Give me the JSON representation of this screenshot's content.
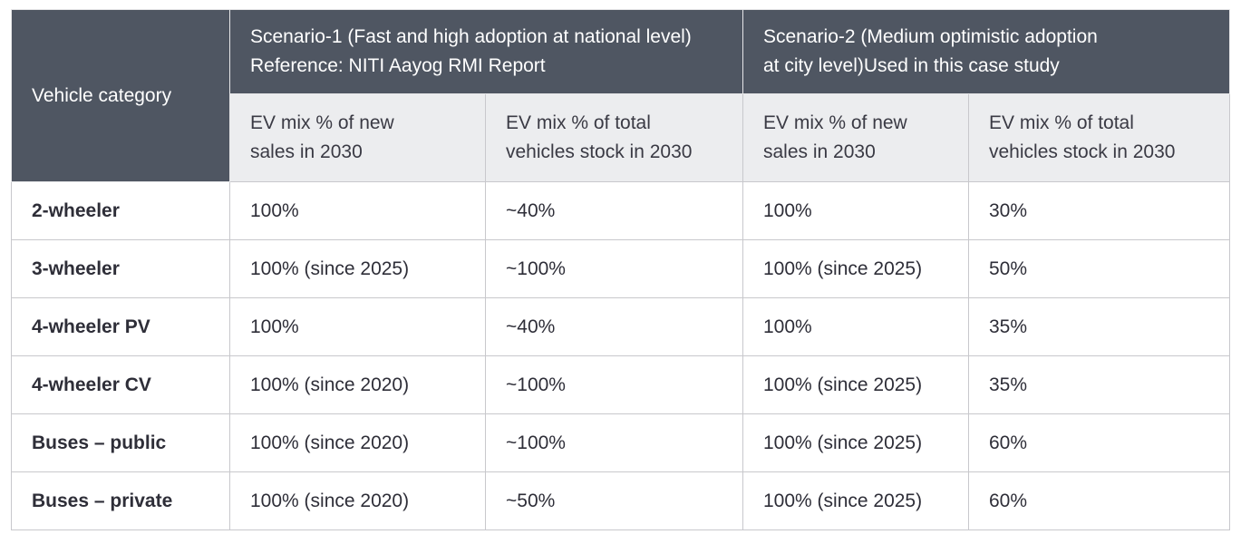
{
  "table": {
    "header": {
      "vehicle_category": "Vehicle category",
      "scenario1": {
        "line1": "Scenario-1 (Fast and high adoption at national level)",
        "line2": "Reference: NITI Aayog RMI Report"
      },
      "scenario2": {
        "line1": "Scenario-2 (Medium optimistic adoption",
        "line2": "at city level)Used in this case study"
      },
      "sub": [
        {
          "line1": "EV mix % of new",
          "line2": "sales in 2030"
        },
        {
          "line1": "EV mix % of total",
          "line2": "vehicles stock in 2030"
        },
        {
          "line1": "EV mix % of new",
          "line2": "sales in 2030"
        },
        {
          "line1": "EV mix % of total",
          "line2": "vehicles stock in 2030"
        }
      ]
    },
    "rows": [
      {
        "category": "2-wheeler",
        "s1_new_sales": "100%",
        "s1_stock": "~40%",
        "s2_new_sales": "100%",
        "s2_stock": "30%"
      },
      {
        "category": "3-wheeler",
        "s1_new_sales": "100% (since 2025)",
        "s1_stock": "~100%",
        "s2_new_sales": "100% (since 2025)",
        "s2_stock": "50%"
      },
      {
        "category": "4-wheeler PV",
        "s1_new_sales": "100%",
        "s1_stock": "~40%",
        "s2_new_sales": "100%",
        "s2_stock": "35%"
      },
      {
        "category": "4-wheeler CV",
        "s1_new_sales": "100% (since 2020)",
        "s1_stock": "~100%",
        "s2_new_sales": "100% (since 2025)",
        "s2_stock": "35%"
      },
      {
        "category": "Buses – public",
        "s1_new_sales": "100% (since 2020)",
        "s1_stock": "~100%",
        "s2_new_sales": "100% (since 2025)",
        "s2_stock": "60%"
      },
      {
        "category": "Buses – private",
        "s1_new_sales": "100% (since 2020)",
        "s1_stock": "~50%",
        "s2_new_sales": "100% (since 2025)",
        "s2_stock": "60%"
      }
    ]
  }
}
